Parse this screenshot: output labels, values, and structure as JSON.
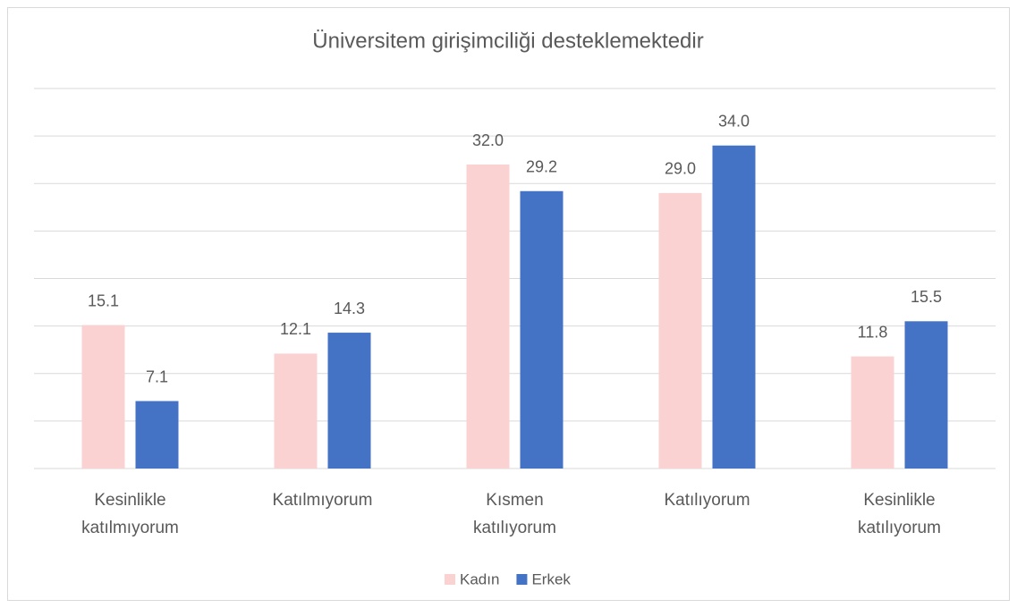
{
  "chart_data": {
    "type": "bar",
    "title": "Üniversitem girişimciliği desteklemektedir",
    "categories": [
      "Kesinlikle katılmıyorum",
      "Katılmıyorum",
      "Kısmen katılıyorum",
      "Katılıyorum",
      "Kesinlikle katılıyorum"
    ],
    "series": [
      {
        "name": "Kadın",
        "color": "#fad2d2",
        "values": [
          15.1,
          12.1,
          32,
          29,
          11.8
        ],
        "value_labels": [
          "15.1",
          "12.1",
          "32.0",
          "29.0",
          "11.8"
        ]
      },
      {
        "name": "Erkek",
        "color": "#4472c4",
        "values": [
          7.1,
          14.3,
          29.2,
          34,
          15.5
        ],
        "value_labels": [
          "7.1",
          "14.3",
          "29.2",
          "34.0",
          "15.5"
        ]
      }
    ],
    "ylim": [
      0,
      40
    ],
    "yticks": [
      0,
      5,
      10,
      15,
      20,
      25,
      30,
      35,
      40
    ],
    "grid": true,
    "legend": "bottom"
  }
}
